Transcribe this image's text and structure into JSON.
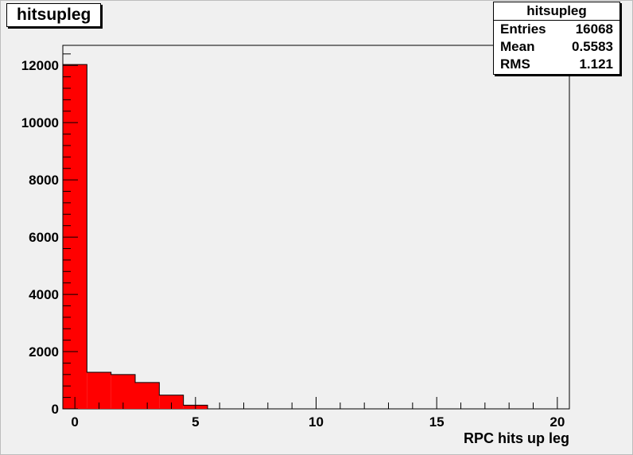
{
  "stats_box": {
    "title": "hitsupleg",
    "rows": [
      {
        "label": "Entries",
        "value": "16068"
      },
      {
        "label": "Mean",
        "value": "0.5583"
      },
      {
        "label": "RMS",
        "value": "1.121"
      }
    ]
  },
  "chart_data": {
    "type": "bar",
    "title": "hitsupleg",
    "xlabel": "RPC hits up leg",
    "ylabel": "",
    "xlim": [
      -0.5,
      20.5
    ],
    "ylim": [
      0,
      12700
    ],
    "x_ticks": [
      0,
      5,
      10,
      15,
      20
    ],
    "y_ticks": [
      0,
      2000,
      4000,
      6000,
      8000,
      10000,
      12000
    ],
    "bin_width": 1,
    "bins": [
      {
        "x_low": -0.5,
        "x_high": 0.5,
        "value": 12030
      },
      {
        "x_low": 0.5,
        "x_high": 1.5,
        "value": 1280
      },
      {
        "x_low": 1.5,
        "x_high": 2.5,
        "value": 1200
      },
      {
        "x_low": 2.5,
        "x_high": 3.5,
        "value": 920
      },
      {
        "x_low": 3.5,
        "x_high": 4.5,
        "value": 480
      },
      {
        "x_low": 4.5,
        "x_high": 5.5,
        "value": 130
      }
    ],
    "fill_color": "#ff0000",
    "line_color": "#000000",
    "grid": false
  }
}
